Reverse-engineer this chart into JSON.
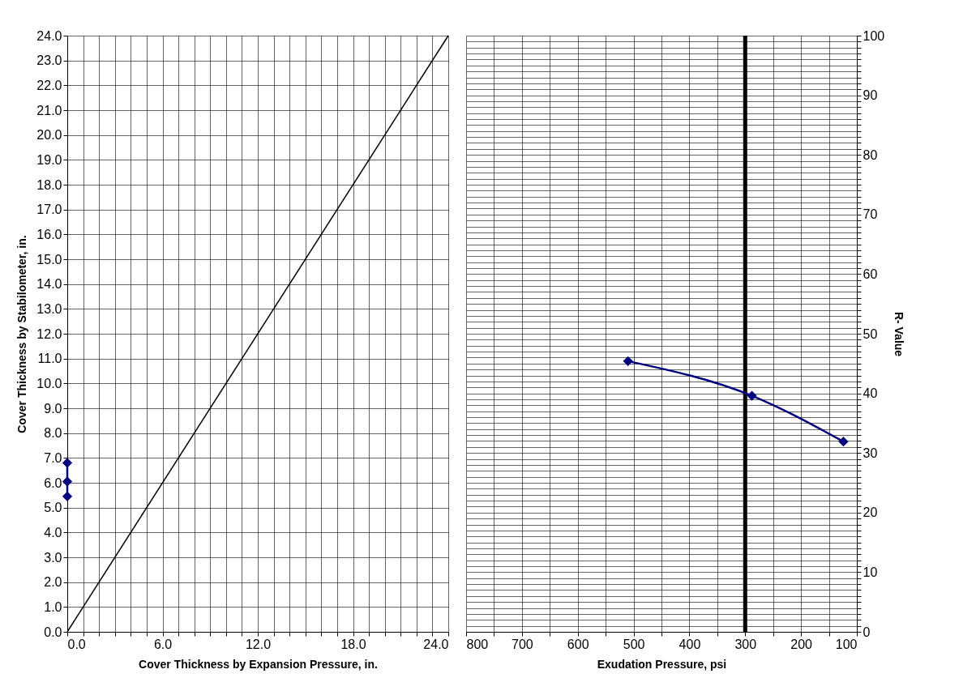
{
  "chart_data": [
    {
      "type": "line",
      "xlabel": "Cover Thickness by Expansion Pressure, in.",
      "ylabel": "Cover Thickness by Stabilometer, in.",
      "xlim": [
        0,
        24
      ],
      "ylim": [
        0,
        24
      ],
      "grid": true,
      "xticks": [
        {
          "value": 0,
          "label": "0.0"
        },
        {
          "value": 1,
          "label": null
        },
        {
          "value": 2,
          "label": null
        },
        {
          "value": 3,
          "label": null
        },
        {
          "value": 4,
          "label": null
        },
        {
          "value": 5,
          "label": null
        },
        {
          "value": 6,
          "label": "6.0"
        },
        {
          "value": 7,
          "label": null
        },
        {
          "value": 8,
          "label": null
        },
        {
          "value": 9,
          "label": null
        },
        {
          "value": 10,
          "label": null
        },
        {
          "value": 11,
          "label": null
        },
        {
          "value": 12,
          "label": "12.0"
        },
        {
          "value": 13,
          "label": null
        },
        {
          "value": 14,
          "label": null
        },
        {
          "value": 15,
          "label": null
        },
        {
          "value": 16,
          "label": null
        },
        {
          "value": 17,
          "label": null
        },
        {
          "value": 18,
          "label": "18.0"
        },
        {
          "value": 19,
          "label": null
        },
        {
          "value": 20,
          "label": null
        },
        {
          "value": 21,
          "label": null
        },
        {
          "value": 22,
          "label": null
        },
        {
          "value": 23,
          "label": null
        },
        {
          "value": 24,
          "label": "24.0"
        }
      ],
      "yticks": [
        {
          "value": 0,
          "label": "0.0"
        },
        {
          "value": 1,
          "label": "1.0"
        },
        {
          "value": 2,
          "label": "2.0"
        },
        {
          "value": 3,
          "label": "3.0"
        },
        {
          "value": 4,
          "label": "4.0"
        },
        {
          "value": 5,
          "label": "5.0"
        },
        {
          "value": 6,
          "label": "6.0"
        },
        {
          "value": 7,
          "label": "7.0"
        },
        {
          "value": 8,
          "label": "8.0"
        },
        {
          "value": 9,
          "label": "9.0"
        },
        {
          "value": 10,
          "label": "10.0"
        },
        {
          "value": 11,
          "label": "11.0"
        },
        {
          "value": 12,
          "label": "12.0"
        },
        {
          "value": 13,
          "label": "13.0"
        },
        {
          "value": 14,
          "label": "14.0"
        },
        {
          "value": 15,
          "label": "15.0"
        },
        {
          "value": 16,
          "label": "16.0"
        },
        {
          "value": 17,
          "label": "17.0"
        },
        {
          "value": 18,
          "label": "18.0"
        },
        {
          "value": 19,
          "label": "19.0"
        },
        {
          "value": 20,
          "label": "20.0"
        },
        {
          "value": 21,
          "label": "21.0"
        },
        {
          "value": 22,
          "label": "22.0"
        },
        {
          "value": 23,
          "label": "23.0"
        },
        {
          "value": 24,
          "label": "24.0"
        }
      ],
      "series": [
        {
          "color": "#000000",
          "marker": "none",
          "x": [
            0,
            24
          ],
          "values": [
            0,
            24
          ]
        },
        {
          "color": "#000080",
          "marker": "diamond",
          "x": [
            0,
            0,
            0
          ],
          "values": [
            6.8,
            6.05,
            5.45
          ]
        }
      ]
    },
    {
      "type": "line",
      "xlabel": "Exudation Pressure, psi",
      "ylabel": "R- Value",
      "xlim": [
        800,
        100
      ],
      "ylim": [
        0,
        100
      ],
      "grid": true,
      "xticks": [
        800,
        {
          "value": 750,
          "label": null
        },
        700,
        {
          "value": 650,
          "label": null
        },
        600,
        {
          "value": 550,
          "label": null
        },
        500,
        {
          "value": 450,
          "label": null
        },
        400,
        {
          "value": 350,
          "label": null
        },
        300,
        {
          "value": 250,
          "label": null
        },
        200,
        {
          "value": 150,
          "label": null
        },
        100
      ],
      "yticks": [
        0,
        {
          "value": 1,
          "label": null
        },
        {
          "value": 2,
          "label": null
        },
        {
          "value": 3,
          "label": null
        },
        {
          "value": 4,
          "label": null
        },
        {
          "value": 5,
          "label": null
        },
        {
          "value": 6,
          "label": null
        },
        {
          "value": 7,
          "label": null
        },
        {
          "value": 8,
          "label": null
        },
        {
          "value": 9,
          "label": null
        },
        10,
        {
          "value": 11,
          "label": null
        },
        {
          "value": 12,
          "label": null
        },
        {
          "value": 13,
          "label": null
        },
        {
          "value": 14,
          "label": null
        },
        {
          "value": 15,
          "label": null
        },
        {
          "value": 16,
          "label": null
        },
        {
          "value": 17,
          "label": null
        },
        {
          "value": 18,
          "label": null
        },
        {
          "value": 19,
          "label": null
        },
        20,
        {
          "value": 21,
          "label": null
        },
        {
          "value": 22,
          "label": null
        },
        {
          "value": 23,
          "label": null
        },
        {
          "value": 24,
          "label": null
        },
        {
          "value": 25,
          "label": null
        },
        {
          "value": 26,
          "label": null
        },
        {
          "value": 27,
          "label": null
        },
        {
          "value": 28,
          "label": null
        },
        {
          "value": 29,
          "label": null
        },
        30,
        {
          "value": 31,
          "label": null
        },
        {
          "value": 32,
          "label": null
        },
        {
          "value": 33,
          "label": null
        },
        {
          "value": 34,
          "label": null
        },
        {
          "value": 35,
          "label": null
        },
        {
          "value": 36,
          "label": null
        },
        {
          "value": 37,
          "label": null
        },
        {
          "value": 38,
          "label": null
        },
        {
          "value": 39,
          "label": null
        },
        40,
        {
          "value": 41,
          "label": null
        },
        {
          "value": 42,
          "label": null
        },
        {
          "value": 43,
          "label": null
        },
        {
          "value": 44,
          "label": null
        },
        {
          "value": 45,
          "label": null
        },
        {
          "value": 46,
          "label": null
        },
        {
          "value": 47,
          "label": null
        },
        {
          "value": 48,
          "label": null
        },
        {
          "value": 49,
          "label": null
        },
        50,
        {
          "value": 51,
          "label": null
        },
        {
          "value": 52,
          "label": null
        },
        {
          "value": 53,
          "label": null
        },
        {
          "value": 54,
          "label": null
        },
        {
          "value": 55,
          "label": null
        },
        {
          "value": 56,
          "label": null
        },
        {
          "value": 57,
          "label": null
        },
        {
          "value": 58,
          "label": null
        },
        {
          "value": 59,
          "label": null
        },
        60,
        {
          "value": 61,
          "label": null
        },
        {
          "value": 62,
          "label": null
        },
        {
          "value": 63,
          "label": null
        },
        {
          "value": 64,
          "label": null
        },
        {
          "value": 65,
          "label": null
        },
        {
          "value": 66,
          "label": null
        },
        {
          "value": 67,
          "label": null
        },
        {
          "value": 68,
          "label": null
        },
        {
          "value": 69,
          "label": null
        },
        70,
        {
          "value": 71,
          "label": null
        },
        {
          "value": 72,
          "label": null
        },
        {
          "value": 73,
          "label": null
        },
        {
          "value": 74,
          "label": null
        },
        {
          "value": 75,
          "label": null
        },
        {
          "value": 76,
          "label": null
        },
        {
          "value": 77,
          "label": null
        },
        {
          "value": 78,
          "label": null
        },
        {
          "value": 79,
          "label": null
        },
        80,
        {
          "value": 81,
          "label": null
        },
        {
          "value": 82,
          "label": null
        },
        {
          "value": 83,
          "label": null
        },
        {
          "value": 84,
          "label": null
        },
        {
          "value": 85,
          "label": null
        },
        {
          "value": 86,
          "label": null
        },
        {
          "value": 87,
          "label": null
        },
        {
          "value": 88,
          "label": null
        },
        {
          "value": 89,
          "label": null
        },
        90,
        {
          "value": 91,
          "label": null
        },
        {
          "value": 92,
          "label": null
        },
        {
          "value": 93,
          "label": null
        },
        {
          "value": 94,
          "label": null
        },
        {
          "value": 95,
          "label": null
        },
        {
          "value": 96,
          "label": null
        },
        {
          "value": 97,
          "label": null
        },
        {
          "value": 98,
          "label": null
        },
        {
          "value": 99,
          "label": null
        },
        100
      ],
      "ref_lines": [
        {
          "axis": "x",
          "value": 300,
          "color": "#000000"
        }
      ],
      "series": [
        {
          "color": "#000080",
          "marker": "diamond",
          "x": [
            510,
            288,
            124
          ],
          "values": [
            45.4,
            39.6,
            31.9
          ]
        }
      ]
    }
  ]
}
